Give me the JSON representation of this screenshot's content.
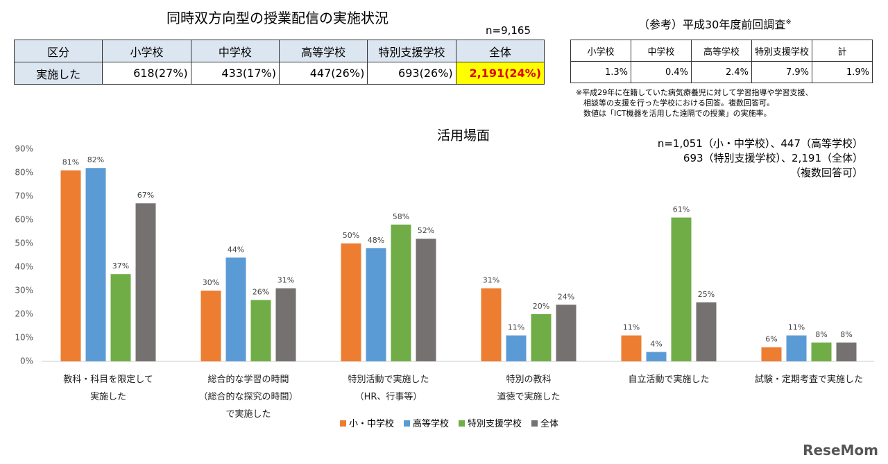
{
  "header": {
    "title": "同時双方向型の授業配信の実施状況",
    "n": "n=9,165"
  },
  "table": {
    "columns": [
      "区分",
      "小学校",
      "中学校",
      "高等学校",
      "特別支援学校",
      "全体"
    ],
    "rows": [
      [
        "実施した",
        "618(27%)",
        "433(17%)",
        "447(26%)",
        "693(26%)",
        "2,191(24%)"
      ]
    ]
  },
  "reference": {
    "title": "（参考）平成30年度前回調査",
    "title_mark": "※",
    "columns": [
      "小学校",
      "中学校",
      "高等学校",
      "特別支援学校",
      "計"
    ],
    "rows": [
      [
        "1.3%",
        "0.4%",
        "2.4%",
        "7.9%",
        "1.9%"
      ]
    ],
    "notes": [
      "※平成29年に在籍していた病気療養児に対して学習指導や学習支援、",
      "　相談等の支援を行った学校における回答。複数回答可。",
      "　数値は「ICT機器を活用した遠隔での授業」の実施率。"
    ]
  },
  "chart_data": {
    "type": "bar",
    "title": "活用場面",
    "notes": [
      "n=1,051（小・中学校）、447（高等学校）",
      "693（特別支援学校）、2,191（全体）",
      "（複数回答可）"
    ],
    "categories": [
      "教科・科目を限定して\n実施した",
      "総合的な学習の時間\n（総合的な探究の時間）\nで実施した",
      "特別活動で実施した\n（HR、行事等）",
      "特別の教科\n道徳で実施した",
      "自立活動で実施した",
      "試験・定期考査で実施した"
    ],
    "series": [
      {
        "name": "小・中学校",
        "color": "#ed7d31",
        "values": [
          81,
          30,
          50,
          31,
          11,
          6
        ],
        "value_labels": [
          "81%",
          "30%",
          "50%",
          "31%",
          "11%",
          "6%"
        ]
      },
      {
        "name": "高等学校",
        "color": "#5b9bd5",
        "values": [
          82,
          44,
          48,
          11,
          4,
          11
        ],
        "value_labels": [
          "82%",
          "44%",
          "48%",
          "11%",
          "4%",
          "11%"
        ]
      },
      {
        "name": "特別支援学校",
        "color": "#70ad47",
        "values": [
          37,
          26,
          58,
          20,
          61,
          8
        ],
        "value_labels": [
          "37%",
          "26%",
          "58%",
          "20%",
          "61%",
          "8%"
        ]
      },
      {
        "name": "全体",
        "color": "#767171",
        "values": [
          67,
          31,
          52,
          24,
          25,
          8
        ],
        "value_labels": [
          "67%",
          "31%",
          "52%",
          "24%",
          "25%",
          "8%"
        ]
      }
    ],
    "ylim": [
      0,
      90
    ],
    "yticks": [
      {
        "value": 0,
        "label": "0%"
      },
      {
        "value": 10,
        "label": "10%"
      },
      {
        "value": 20,
        "label": "20%"
      },
      {
        "value": 30,
        "label": "30%"
      },
      {
        "value": 40,
        "label": "40%"
      },
      {
        "value": 50,
        "label": "50%"
      },
      {
        "value": 60,
        "label": "60%"
      },
      {
        "value": 70,
        "label": "70%"
      },
      {
        "value": 80,
        "label": "80%"
      },
      {
        "value": 90,
        "label": "90%"
      }
    ],
    "grid": false
  },
  "logo": "ReseMom"
}
